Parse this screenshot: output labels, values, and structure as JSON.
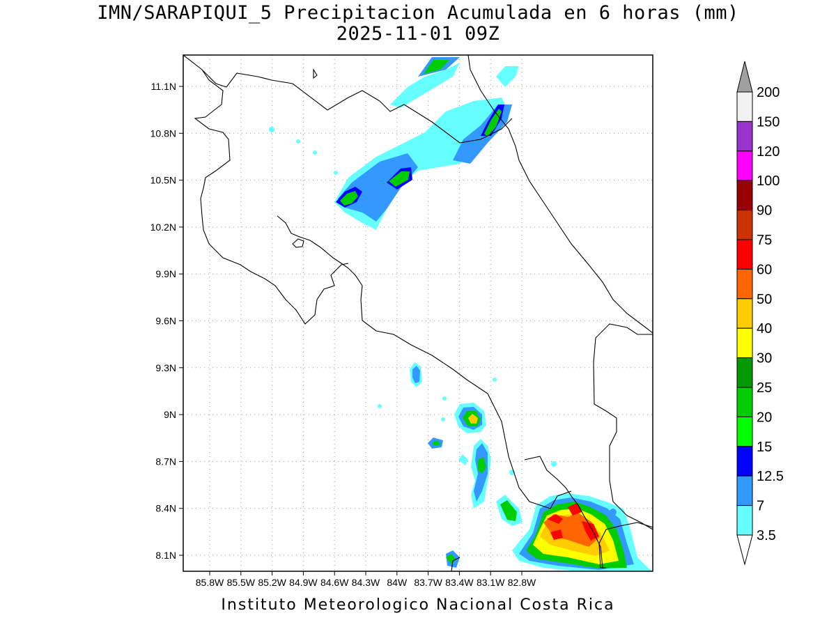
{
  "title": {
    "line1": "IMN/SARAPIQUI_5 Precipitacion Acumulada en 6 horas (mm)",
    "line2": "2025-11-01 09Z"
  },
  "footer": "Instituto Meteorologico Nacional Costa Rica",
  "map": {
    "lon_labels": [
      "85.8W",
      "85.5W",
      "85.2W",
      "84.9W",
      "84.6W",
      "84.3W",
      "84W",
      "83.7W",
      "83.4W",
      "83.1W",
      "82.8W"
    ],
    "lat_labels": [
      "11.1N",
      "10.8N",
      "10.5N",
      "10.2N",
      "9.9N",
      "9.6N",
      "9.3N",
      "9N",
      "8.7N",
      "8.4N",
      "8.1N"
    ],
    "grid": "dotted"
  },
  "colorbar": {
    "labels": [
      "200",
      "150",
      "120",
      "100",
      "90",
      "75",
      "60",
      "50",
      "40",
      "30",
      "25",
      "20",
      "15",
      "12.5",
      "7",
      "3.5"
    ],
    "colors": [
      "#f2f2f2",
      "#9933cc",
      "#ff00ff",
      "#990000",
      "#cc3300",
      "#ff0000",
      "#ff6600",
      "#ffcc00",
      "#ffff00",
      "#009900",
      "#00cc00",
      "#00ff00",
      "#0000ff",
      "#3399ff",
      "#66ffff"
    ],
    "over_color": "#a0a0a0",
    "under_color": "#ffffff"
  }
}
